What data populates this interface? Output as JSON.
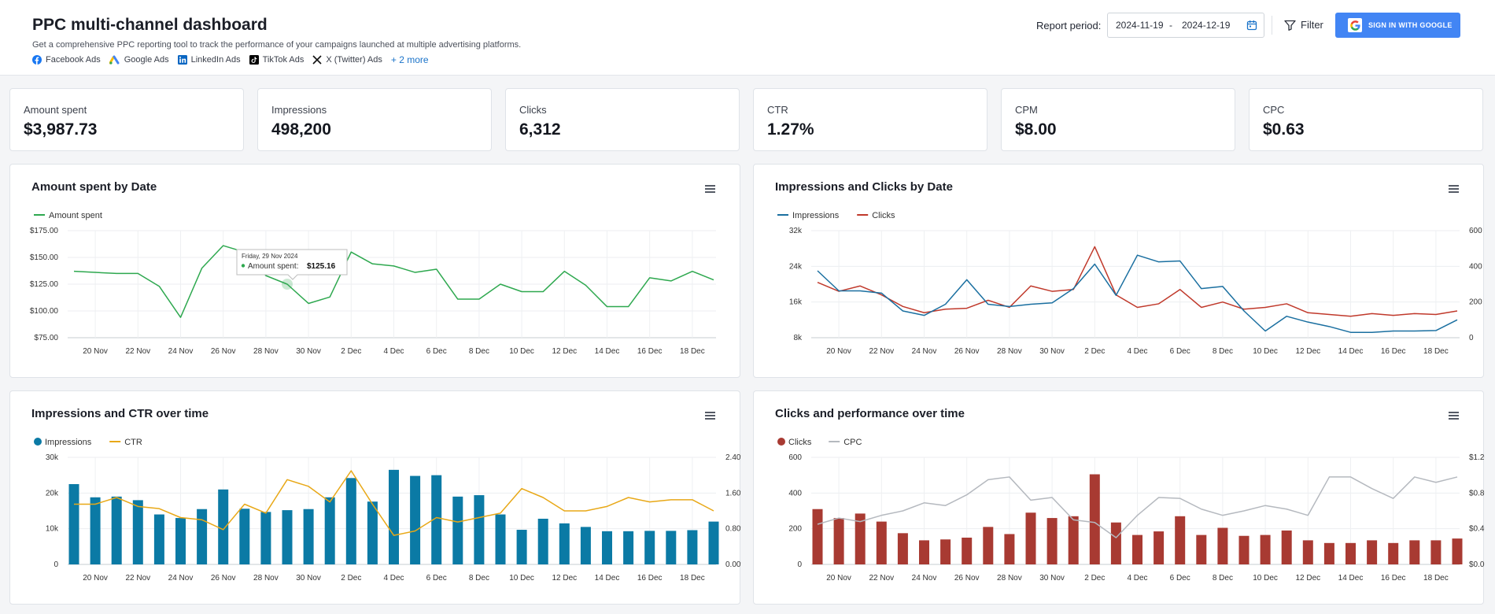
{
  "header": {
    "title": "PPC multi-channel dashboard",
    "subtitle": "Get a comprehensive PPC reporting tool to track the performance of your campaigns launched at multiple advertising platforms.",
    "sources": [
      "Facebook Ads",
      "Google Ads",
      "LinkedIn Ads",
      "TikTok Ads",
      "X (Twitter) Ads"
    ],
    "more_label": "+ 2 more",
    "report_period_label": "Report period:",
    "date_from": "2024-11-19",
    "date_sep": "-",
    "date_to": "2024-12-19",
    "filter_label": "Filter",
    "signin_label": "SIGN IN WITH GOOGLE"
  },
  "kpis": [
    {
      "label": "Amount spent",
      "value": "$3,987.73"
    },
    {
      "label": "Impressions",
      "value": "498,200"
    },
    {
      "label": "Clicks",
      "value": "6,312"
    },
    {
      "label": "CTR",
      "value": "1.27%"
    },
    {
      "label": "CPM",
      "value": "$8.00"
    },
    {
      "label": "CPC",
      "value": "$0.63"
    }
  ],
  "colors": {
    "spent": "#2ea84f",
    "impressions_line": "#1a6fa0",
    "clicks_line": "#c0392b",
    "impressions_bar": "#0b7aa5",
    "ctr": "#e8a817",
    "clicks_bar": "#a83a32",
    "cpc": "#b5b9bf"
  },
  "tooltip": {
    "date": "Friday, 29 Nov 2024",
    "label": "Amount spent:",
    "value": "$125.16"
  },
  "chart_data": [
    {
      "type": "line",
      "title": "Amount spent by Date",
      "legend": [
        "Amount spent"
      ],
      "x_ticks": [
        "20 Nov",
        "22 Nov",
        "24 Nov",
        "26 Nov",
        "28 Nov",
        "30 Nov",
        "2 Dec",
        "4 Dec",
        "6 Dec",
        "8 Dec",
        "10 Dec",
        "12 Dec",
        "14 Dec",
        "16 Dec",
        "18 Dec"
      ],
      "y_ticks": [
        "$75.00",
        "$100.00",
        "$125.00",
        "$150.00",
        "$175.00"
      ],
      "ylim": [
        75,
        175
      ],
      "series": [
        {
          "name": "Amount spent",
          "values": [
            137,
            136,
            135,
            135,
            123,
            94,
            140,
            161,
            155,
            133,
            125,
            107,
            113,
            155,
            144,
            142,
            136,
            139,
            111,
            111,
            125,
            118,
            118,
            137,
            124,
            104,
            104,
            131,
            128,
            137,
            129
          ]
        }
      ]
    },
    {
      "type": "line",
      "title": "Impressions and Clicks by Date",
      "legend": [
        "Impressions",
        "Clicks"
      ],
      "x_ticks": [
        "20 Nov",
        "22 Nov",
        "24 Nov",
        "26 Nov",
        "28 Nov",
        "30 Nov",
        "2 Dec",
        "4 Dec",
        "6 Dec",
        "8 Dec",
        "10 Dec",
        "12 Dec",
        "14 Dec",
        "16 Dec",
        "18 Dec"
      ],
      "y_left_ticks": [
        "8k",
        "16k",
        "24k",
        "32k"
      ],
      "y_right_ticks": [
        "0",
        "200",
        "400",
        "600"
      ],
      "ylim_left": [
        8000,
        32000
      ],
      "ylim_right": [
        0,
        600
      ],
      "series": [
        {
          "name": "Impressions",
          "axis": "left",
          "values": [
            23000,
            18500,
            18500,
            18000,
            14000,
            13000,
            15500,
            21000,
            15500,
            15000,
            15500,
            15800,
            19000,
            24500,
            17500,
            26500,
            25000,
            25200,
            19000,
            19500,
            14000,
            9500,
            12800,
            11500,
            10500,
            9200,
            9200,
            9500,
            9500,
            9600,
            12000
          ]
        },
        {
          "name": "Clicks",
          "axis": "right",
          "values": [
            310,
            260,
            290,
            240,
            175,
            140,
            160,
            165,
            210,
            170,
            290,
            260,
            270,
            510,
            240,
            170,
            190,
            270,
            170,
            200,
            160,
            170,
            190,
            140,
            130,
            120,
            135,
            125,
            135,
            130,
            150
          ]
        }
      ]
    },
    {
      "type": "bar",
      "title": "Impressions and CTR over time",
      "legend": [
        "Impressions",
        "CTR"
      ],
      "x_ticks": [
        "20 Nov",
        "22 Nov",
        "24 Nov",
        "26 Nov",
        "28 Nov",
        "30 Nov",
        "2 Dec",
        "4 Dec",
        "6 Dec",
        "8 Dec",
        "10 Dec",
        "12 Dec",
        "14 Dec",
        "16 Dec",
        "18 Dec"
      ],
      "y_left_ticks": [
        "0",
        "10k",
        "20k",
        "30k"
      ],
      "y_right_ticks": [
        "0.00%",
        "0.80%",
        "1.60%",
        "2.40%"
      ],
      "ylim_left": [
        0,
        30000
      ],
      "ylim_right": [
        0,
        2.4
      ],
      "series": [
        {
          "name": "Impressions",
          "kind": "bar",
          "values": [
            22500,
            18800,
            19000,
            18000,
            14000,
            13000,
            15500,
            21000,
            15600,
            14700,
            15200,
            15500,
            18800,
            24200,
            17600,
            26500,
            24800,
            25000,
            19000,
            19400,
            14000,
            9700,
            12800,
            11500,
            10500,
            9300,
            9300,
            9400,
            9400,
            9600,
            12000
          ]
        },
        {
          "name": "CTR",
          "kind": "line",
          "values": [
            1.35,
            1.35,
            1.5,
            1.3,
            1.25,
            1.05,
            1.0,
            0.78,
            1.35,
            1.15,
            1.9,
            1.75,
            1.4,
            2.1,
            1.35,
            0.65,
            0.75,
            1.05,
            0.95,
            1.05,
            1.15,
            1.7,
            1.5,
            1.2,
            1.2,
            1.3,
            1.5,
            1.4,
            1.45,
            1.45,
            1.2
          ]
        }
      ]
    },
    {
      "type": "bar",
      "title": "Clicks and performance over time",
      "legend": [
        "Clicks",
        "CPC"
      ],
      "x_ticks": [
        "20 Nov",
        "22 Nov",
        "24 Nov",
        "26 Nov",
        "28 Nov",
        "30 Nov",
        "2 Dec",
        "4 Dec",
        "6 Dec",
        "8 Dec",
        "10 Dec",
        "12 Dec",
        "14 Dec",
        "16 Dec",
        "18 Dec"
      ],
      "y_left_ticks": [
        "0",
        "200",
        "400",
        "600"
      ],
      "y_right_ticks": [
        "$0.00",
        "$0.40",
        "$0.80",
        "$1.20"
      ],
      "ylim_left": [
        0,
        600
      ],
      "ylim_right": [
        0,
        1.2
      ],
      "series": [
        {
          "name": "Clicks",
          "kind": "bar",
          "values": [
            310,
            260,
            285,
            240,
            175,
            135,
            140,
            150,
            210,
            170,
            290,
            260,
            270,
            505,
            235,
            165,
            185,
            270,
            165,
            205,
            160,
            165,
            190,
            135,
            120,
            120,
            135,
            120,
            135,
            135,
            145
          ]
        },
        {
          "name": "CPC",
          "kind": "line",
          "values": [
            0.45,
            0.52,
            0.48,
            0.55,
            0.6,
            0.69,
            0.66,
            0.78,
            0.95,
            0.98,
            0.72,
            0.75,
            0.5,
            0.47,
            0.3,
            0.55,
            0.75,
            0.74,
            0.62,
            0.55,
            0.6,
            0.66,
            0.62,
            0.55,
            0.98,
            0.98,
            0.85,
            0.74,
            0.98,
            0.92,
            0.98
          ]
        }
      ]
    }
  ]
}
